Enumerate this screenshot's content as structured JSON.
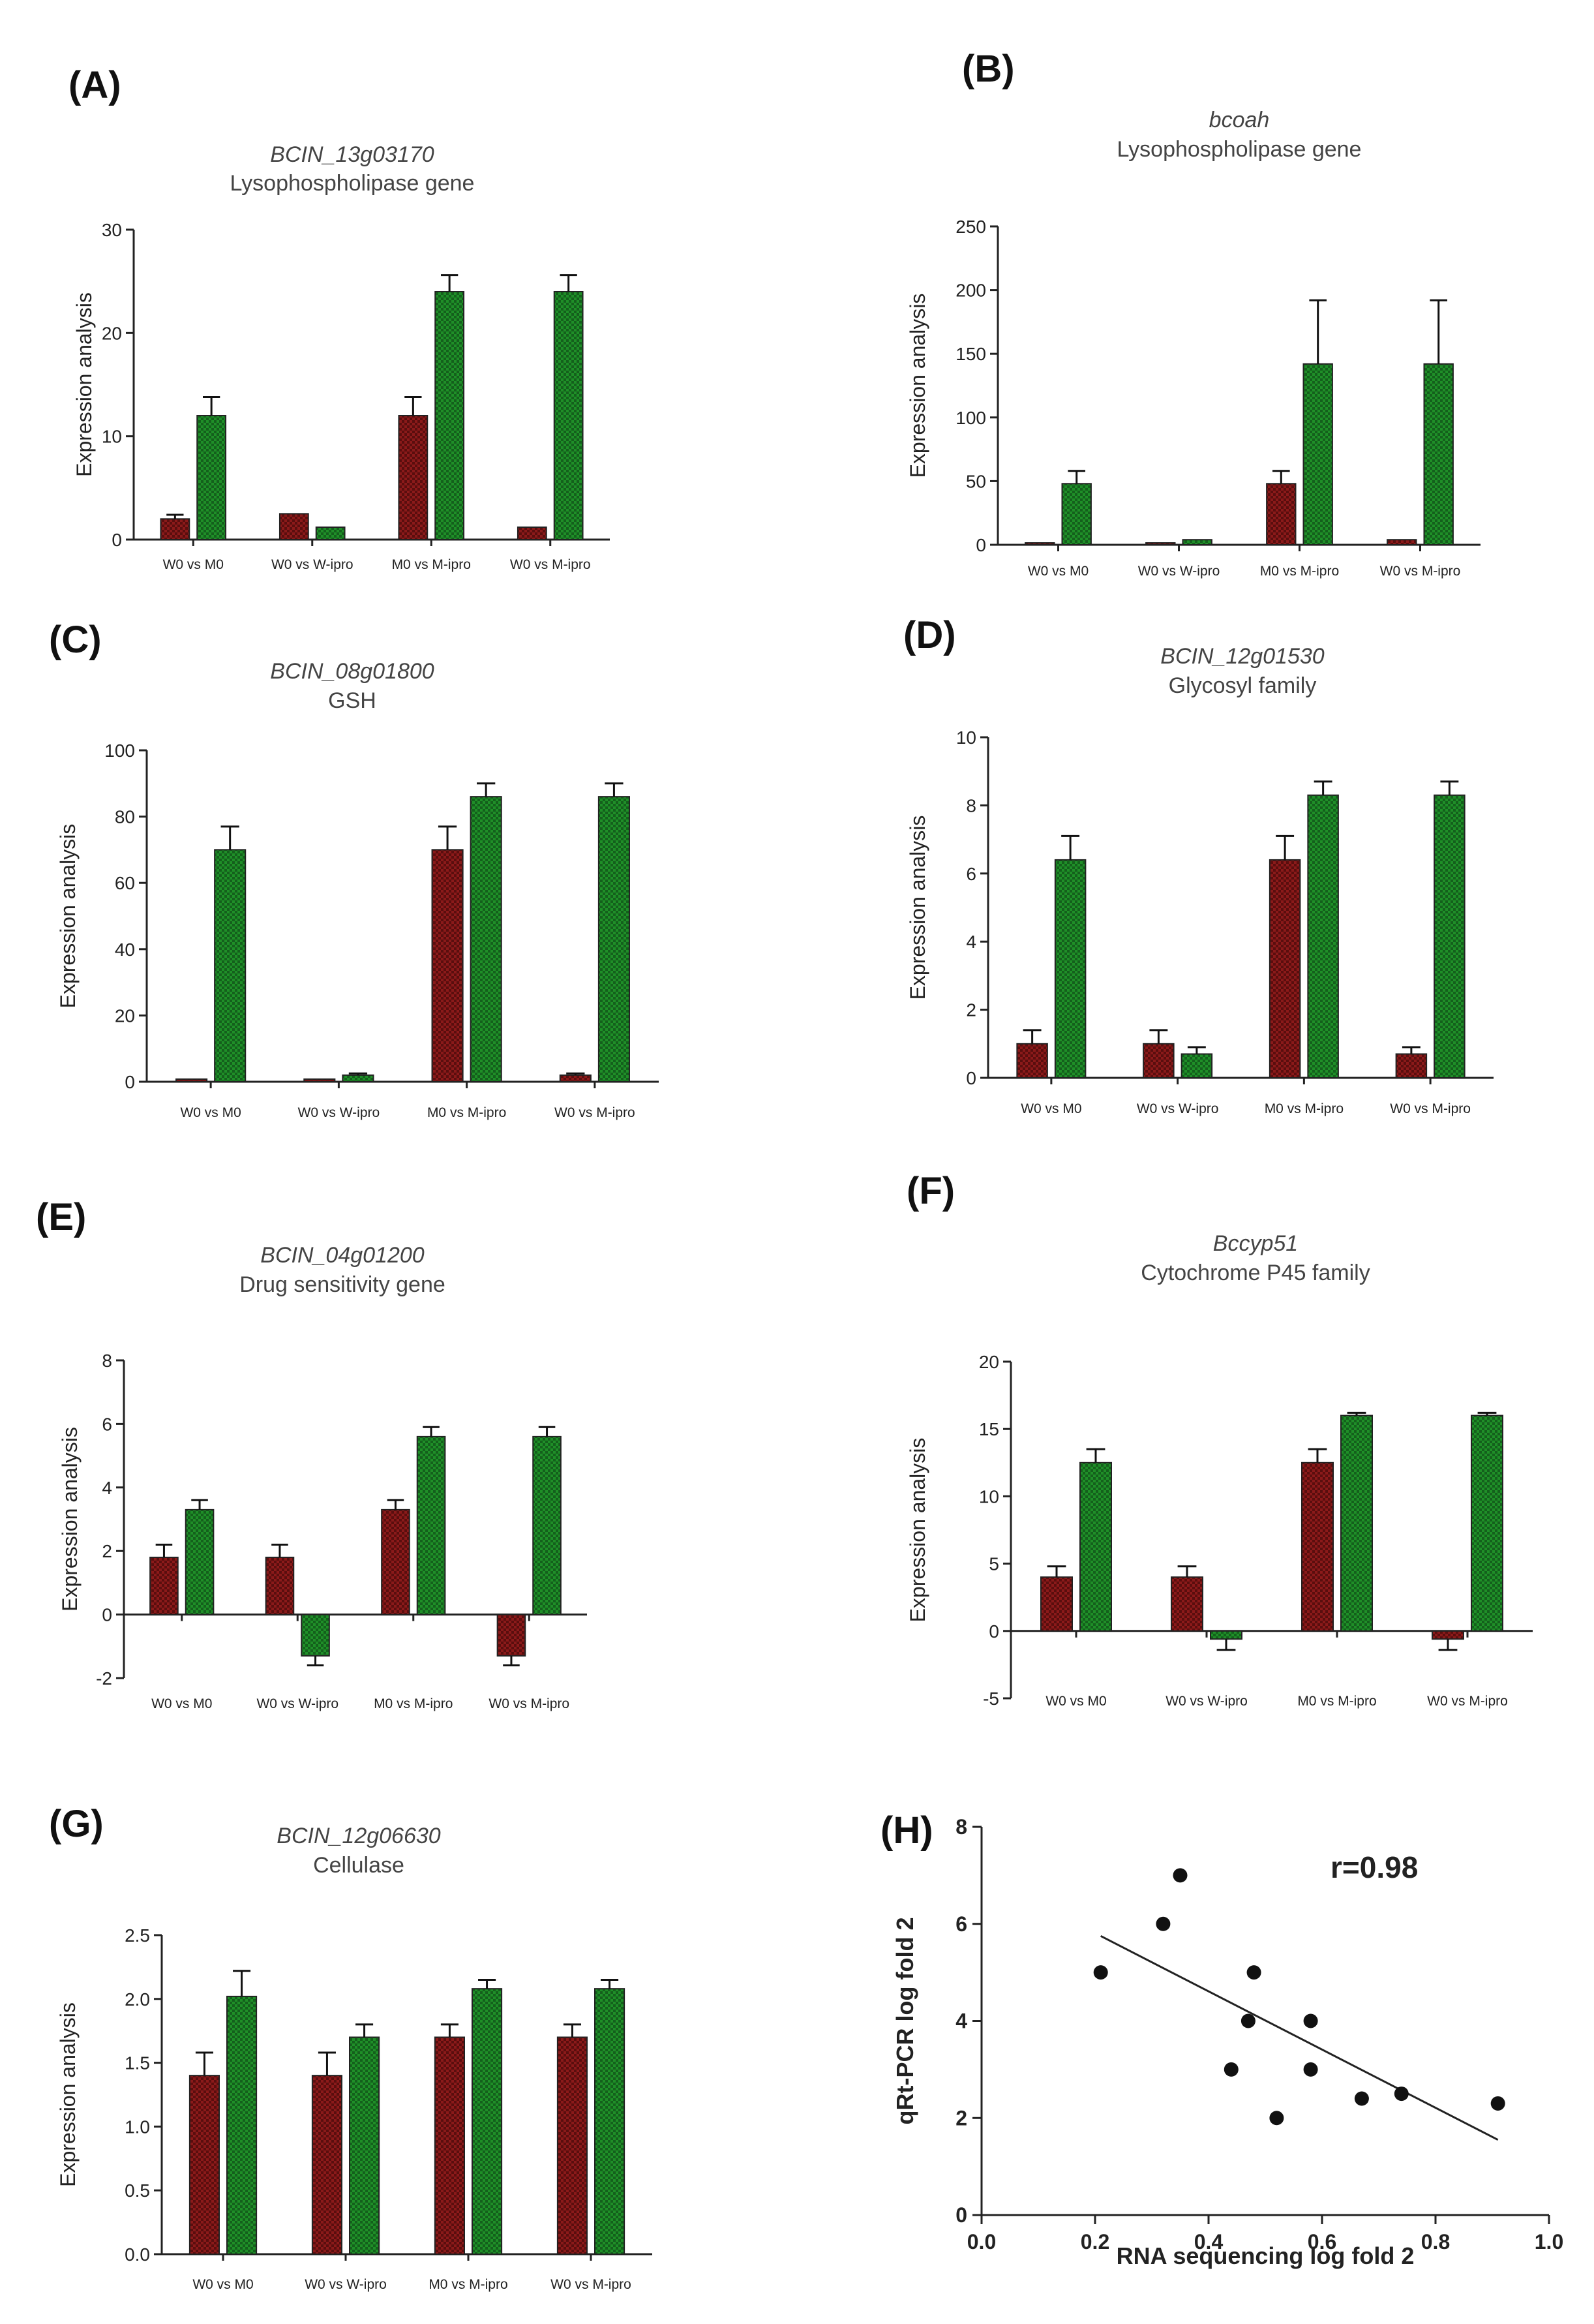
{
  "colors": {
    "series_a": "#8b1a1a",
    "series_b": "#1f8f28",
    "series_b_dark": "#14601c",
    "point": "#111111"
  },
  "chart_data": [
    {
      "type": "bar",
      "letter": "(A)",
      "title": "BCIN_13g03170",
      "subtitle": "Lysophospholipase gene",
      "ylabel": "Expression analysis",
      "ylim": [
        0,
        30
      ],
      "yticks": [
        0,
        10,
        20,
        30
      ],
      "categories": [
        "W0 vs M0",
        "W0 vs W-ipro",
        "M0 vs M-ipro",
        "W0 vs M-ipro"
      ],
      "series": [
        {
          "values": [
            2,
            2.5,
            12,
            1.2
          ],
          "errors": [
            0.4,
            0,
            1.8,
            0
          ]
        },
        {
          "values": [
            12,
            1.2,
            24,
            24
          ],
          "errors": [
            1.8,
            0,
            1.6,
            1.6
          ]
        }
      ]
    },
    {
      "type": "bar",
      "letter": "(B)",
      "title": "bcoah",
      "subtitle": "Lysophospholipase gene",
      "ylabel": "Expression analysis",
      "ylim": [
        0,
        250
      ],
      "yticks": [
        0,
        50,
        100,
        150,
        200,
        250
      ],
      "categories": [
        "W0 vs M0",
        "W0 vs W-ipro",
        "M0 vs M-ipro",
        "W0 vs M-ipro"
      ],
      "series": [
        {
          "values": [
            1.5,
            1.5,
            48,
            4
          ],
          "errors": [
            0,
            0,
            10,
            0
          ]
        },
        {
          "values": [
            48,
            4,
            142,
            142
          ],
          "errors": [
            10,
            0,
            50,
            50
          ]
        }
      ]
    },
    {
      "type": "bar",
      "letter": "(C)",
      "title": "BCIN_08g01800",
      "subtitle": "GSH",
      "ylabel": "Expression analysis",
      "ylim": [
        0,
        100
      ],
      "yticks": [
        0,
        20,
        40,
        60,
        80,
        100
      ],
      "categories": [
        "W0 vs M0",
        "W0 vs W-ipro",
        "M0 vs M-ipro",
        "W0 vs M-ipro"
      ],
      "series": [
        {
          "values": [
            0.8,
            0.8,
            70,
            2
          ],
          "errors": [
            0,
            0,
            7,
            0.5
          ]
        },
        {
          "values": [
            70,
            2,
            86,
            86
          ],
          "errors": [
            7,
            0.5,
            4,
            4
          ]
        }
      ]
    },
    {
      "type": "bar",
      "letter": "(D)",
      "title": "BCIN_12g01530",
      "subtitle": "Glycosyl family",
      "ylabel": "Expression analysis",
      "ylim": [
        0,
        10
      ],
      "yticks": [
        0,
        2,
        4,
        6,
        8,
        10
      ],
      "categories": [
        "W0 vs M0",
        "W0 vs W-ipro",
        "M0 vs M-ipro",
        "W0 vs M-ipro"
      ],
      "series": [
        {
          "values": [
            1,
            1,
            6.4,
            0.7
          ],
          "errors": [
            0.4,
            0.4,
            0.7,
            0.2
          ]
        },
        {
          "values": [
            6.4,
            0.7,
            8.3,
            8.3
          ],
          "errors": [
            0.7,
            0.2,
            0.4,
            0.4
          ]
        }
      ]
    },
    {
      "type": "bar",
      "letter": "(E)",
      "title": "BCIN_04g01200",
      "subtitle": "Drug sensitivity gene",
      "ylabel": "Expression analysis",
      "ylim": [
        -2,
        8
      ],
      "yticks": [
        -2,
        0,
        2,
        4,
        6,
        8
      ],
      "categories": [
        "W0 vs M0",
        "W0 vs W-ipro",
        "M0 vs M-ipro",
        "W0 vs M-ipro"
      ],
      "series": [
        {
          "values": [
            1.8,
            1.8,
            3.3,
            -1.3
          ],
          "errors": [
            0.4,
            0.4,
            0.3,
            0.3
          ]
        },
        {
          "values": [
            3.3,
            -1.3,
            5.6,
            5.6
          ],
          "errors": [
            0.3,
            0.3,
            0.3,
            0.3
          ]
        }
      ]
    },
    {
      "type": "bar",
      "letter": "(F)",
      "title": "Bccyp51",
      "subtitle": "Cytochrome P45 family",
      "ylabel": "Expression analysis",
      "ylim": [
        -5,
        20
      ],
      "yticks": [
        -5,
        0,
        5,
        10,
        15,
        20
      ],
      "categories": [
        "W0 vs M0",
        "W0 vs W-ipro",
        "M0 vs M-ipro",
        "W0 vs M-ipro"
      ],
      "series": [
        {
          "values": [
            4,
            4,
            12.5,
            -0.6
          ],
          "errors": [
            0.8,
            0.8,
            1,
            0.8
          ]
        },
        {
          "values": [
            12.5,
            -0.6,
            16,
            16
          ],
          "errors": [
            1,
            0.8,
            0.2,
            0.2
          ]
        }
      ]
    },
    {
      "type": "bar",
      "letter": "(G)",
      "title": "BCIN_12g06630",
      "subtitle": "Cellulase",
      "ylabel": "Expression analysis",
      "ylim": [
        0,
        2.5
      ],
      "yticks": [
        "0.0",
        "0.5",
        "1.0",
        "1.5",
        "2.0",
        "2.5"
      ],
      "categories": [
        "W0 vs M0",
        "W0 vs W-ipro",
        "M0 vs M-ipro",
        "W0 vs M-ipro"
      ],
      "series": [
        {
          "values": [
            1.4,
            1.4,
            1.7,
            1.7
          ],
          "errors": [
            0.18,
            0.18,
            0.1,
            0.1
          ]
        },
        {
          "values": [
            2.02,
            1.7,
            2.08,
            2.08
          ],
          "errors": [
            0.2,
            0.1,
            0.07,
            0.07
          ]
        }
      ]
    },
    {
      "type": "scatter",
      "letter": "(H)",
      "xlabel": "RNA sequencing log fold 2",
      "ylabel": "qRt-PCR log fold 2",
      "xlim": [
        0,
        1
      ],
      "ylim": [
        0,
        8
      ],
      "xticks": [
        "0.0",
        "0.2",
        "0.4",
        "0.6",
        "0.8",
        "1.0"
      ],
      "yticks": [
        "0",
        "2",
        "4",
        "6",
        "8"
      ],
      "annotation": "r=0.98",
      "points": [
        [
          0.21,
          5
        ],
        [
          0.32,
          6
        ],
        [
          0.35,
          7
        ],
        [
          0.44,
          3
        ],
        [
          0.47,
          4
        ],
        [
          0.48,
          5
        ],
        [
          0.52,
          2
        ],
        [
          0.58,
          4
        ],
        [
          0.58,
          3
        ],
        [
          0.67,
          2.4
        ],
        [
          0.74,
          2.5
        ],
        [
          0.91,
          2.3
        ]
      ],
      "fit": [
        [
          0.21,
          5.75
        ],
        [
          0.91,
          1.55
        ]
      ]
    }
  ]
}
